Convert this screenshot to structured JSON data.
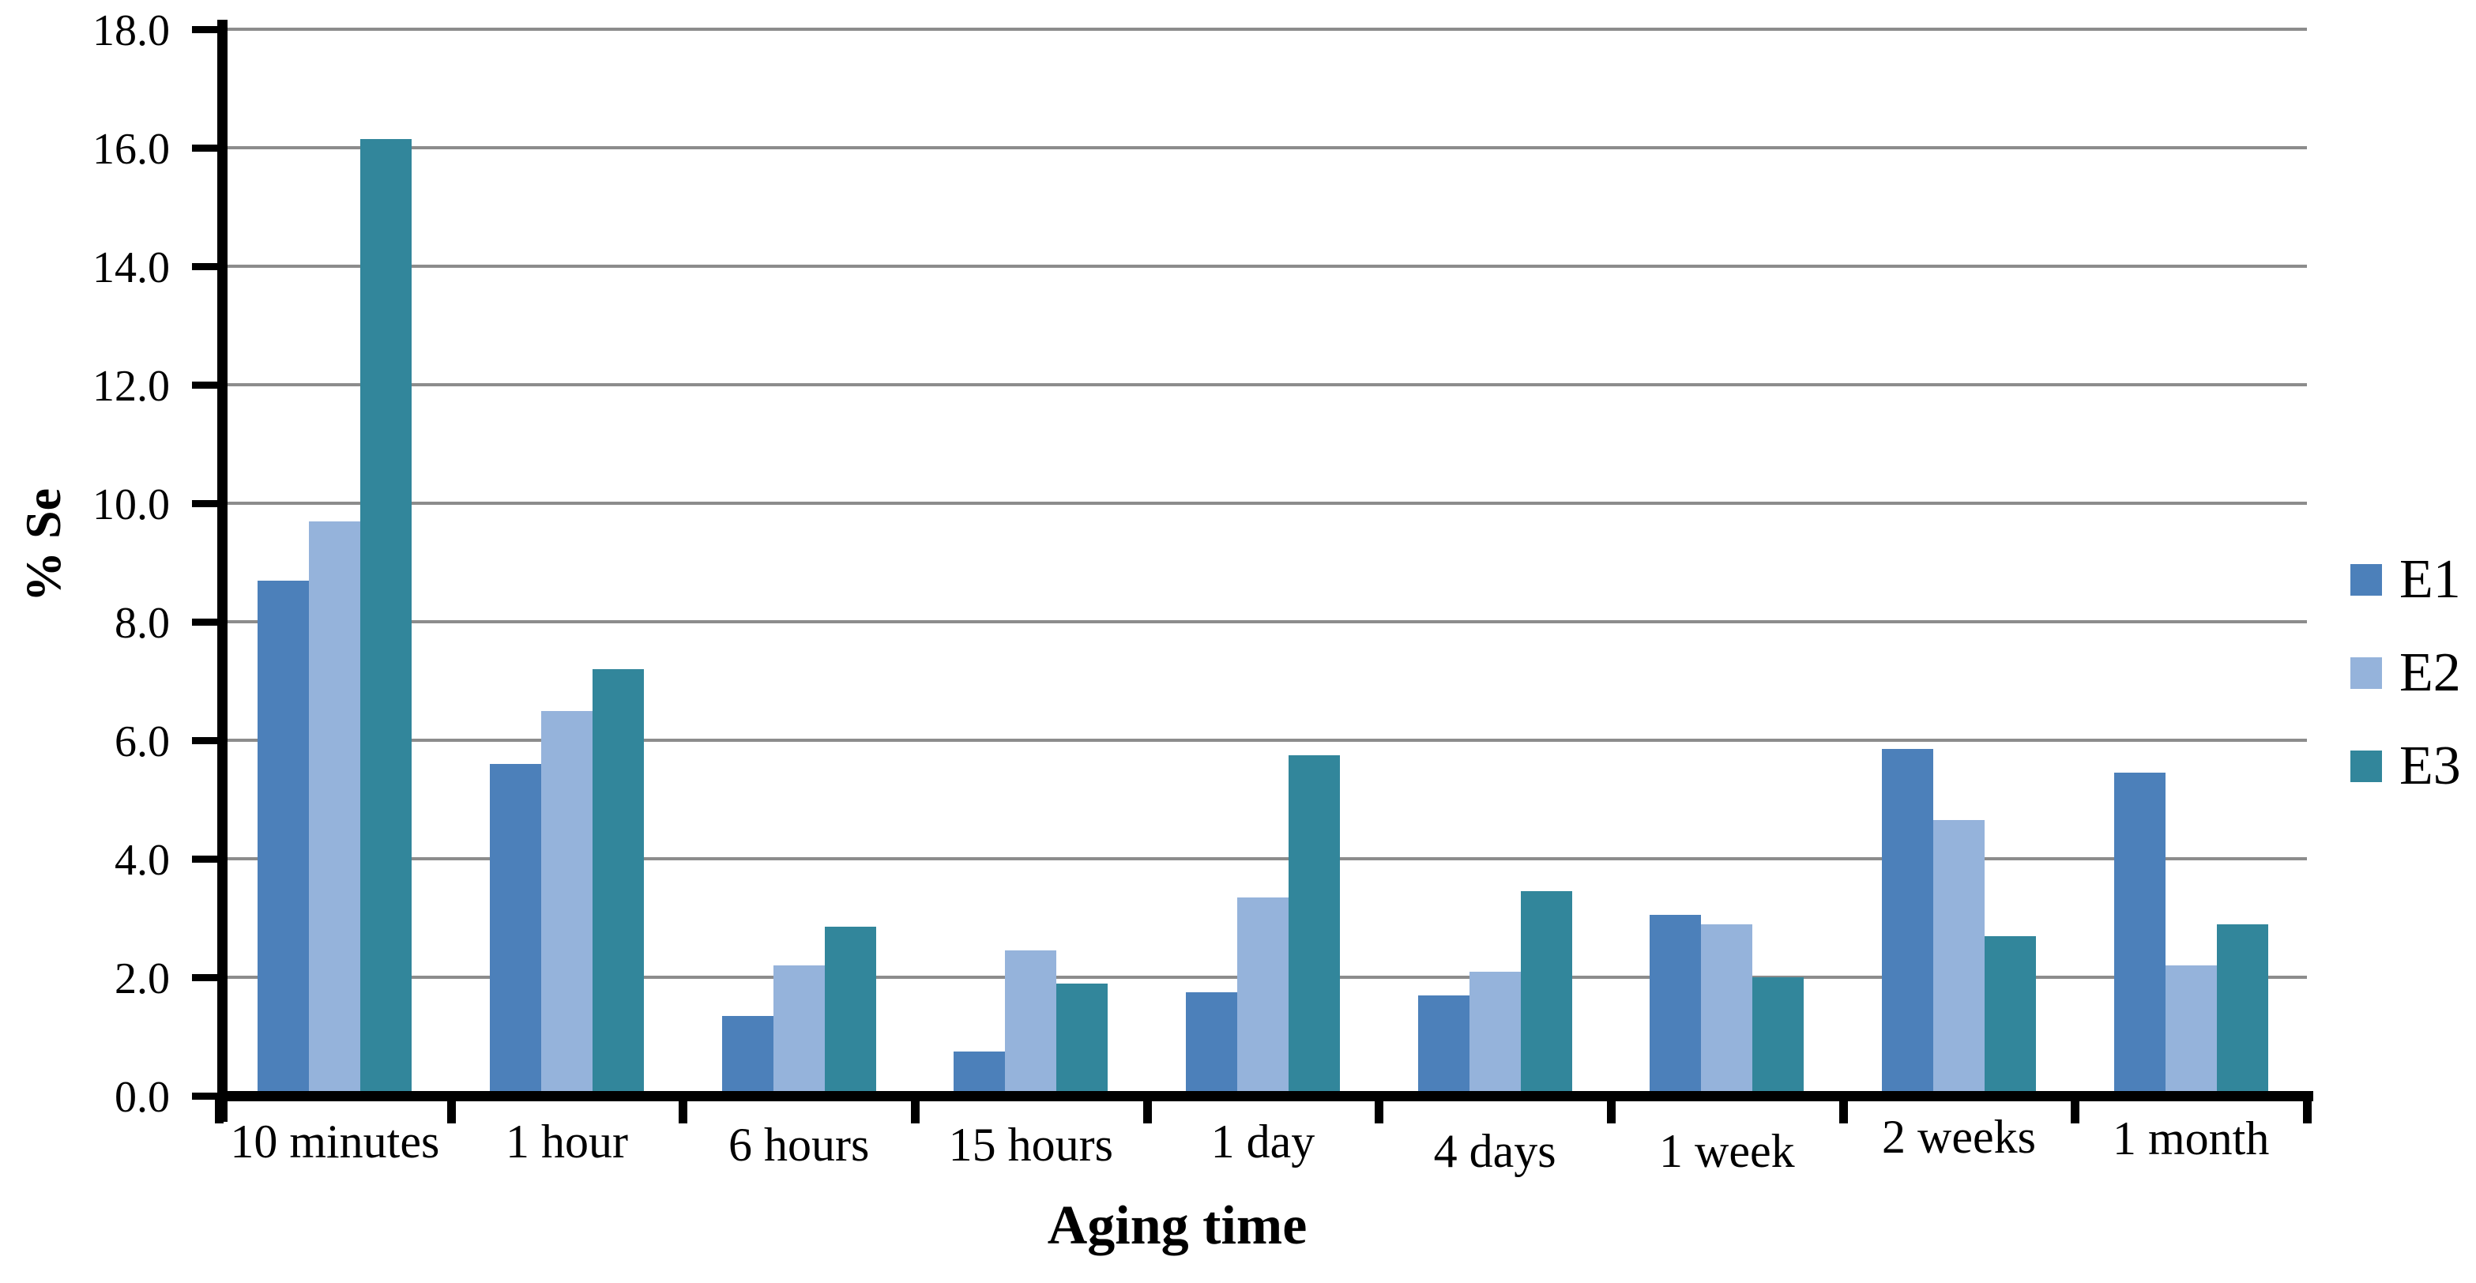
{
  "chart_data": {
    "type": "bar",
    "title": "",
    "xlabel": "Aging time",
    "ylabel": "% Se",
    "categories": [
      "10 minutes",
      "1 hour",
      "6 hours",
      "15 hours",
      "1 day",
      "4 days",
      "1 week",
      "2 weeks",
      "1 month"
    ],
    "series": [
      {
        "name": "E1",
        "color": "#4C80BA",
        "values": [
          8.7,
          5.6,
          1.35,
          0.75,
          1.75,
          1.7,
          3.05,
          5.85,
          5.45
        ]
      },
      {
        "name": "E2",
        "color": "#95B3DB",
        "values": [
          9.7,
          6.5,
          2.2,
          2.45,
          3.35,
          2.1,
          2.9,
          4.65,
          2.2
        ]
      },
      {
        "name": "E3",
        "color": "#32869B",
        "values": [
          16.15,
          7.2,
          2.85,
          1.9,
          5.75,
          3.45,
          2.0,
          2.7,
          2.9
        ]
      }
    ],
    "ylim": [
      0,
      18
    ],
    "ytick_step": 2,
    "ytick_labels": [
      "0.0",
      "2.0",
      "4.0",
      "6.0",
      "8.0",
      "10.0",
      "12.0",
      "14.0",
      "16.0",
      "18.0"
    ],
    "grid": "horizontal",
    "legend_position": "right",
    "axis_color": "#000000",
    "gridline_color": "#8C8C8C",
    "background_color": "#FFFFFF"
  }
}
